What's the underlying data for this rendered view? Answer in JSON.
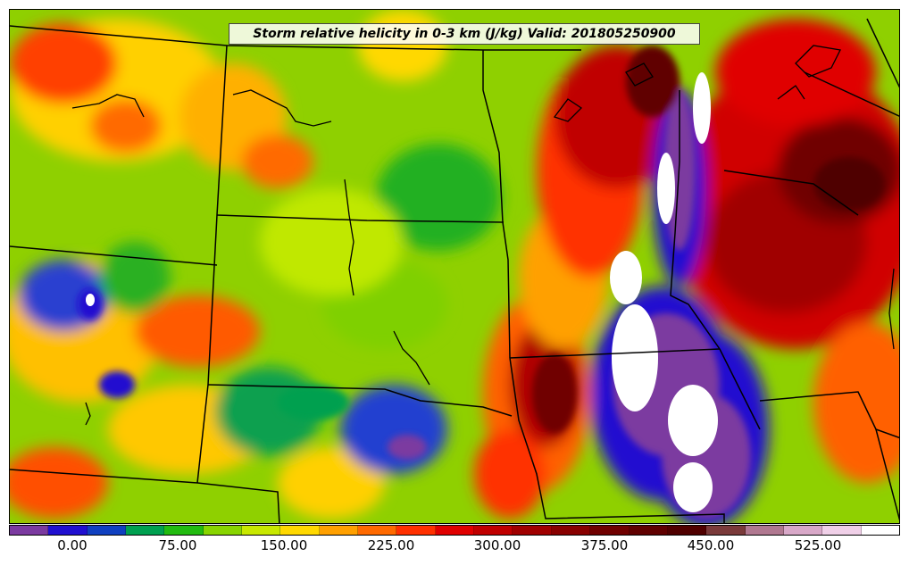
{
  "title": "Storm relative helicity in 0-3 km (J/kg) Valid: 201805250900",
  "colorbar": {
    "colors": [
      "#7b3aa0",
      "#2010d0",
      "#1040c0",
      "#00a050",
      "#22bb10",
      "#88d400",
      "#c8e800",
      "#ffd800",
      "#ffa000",
      "#ff6a00",
      "#ff3000",
      "#e00000",
      "#c00000",
      "#a00000",
      "#880000",
      "#700000",
      "#600000",
      "#500000",
      "#7a3a3a",
      "#b07890",
      "#d8a8c8",
      "#f0d0e8",
      "#ffffff"
    ],
    "tick_labels": [
      "0.00",
      "75.00",
      "150.00",
      "225.00",
      "300.00",
      "375.00",
      "450.00",
      "525.00"
    ]
  }
}
